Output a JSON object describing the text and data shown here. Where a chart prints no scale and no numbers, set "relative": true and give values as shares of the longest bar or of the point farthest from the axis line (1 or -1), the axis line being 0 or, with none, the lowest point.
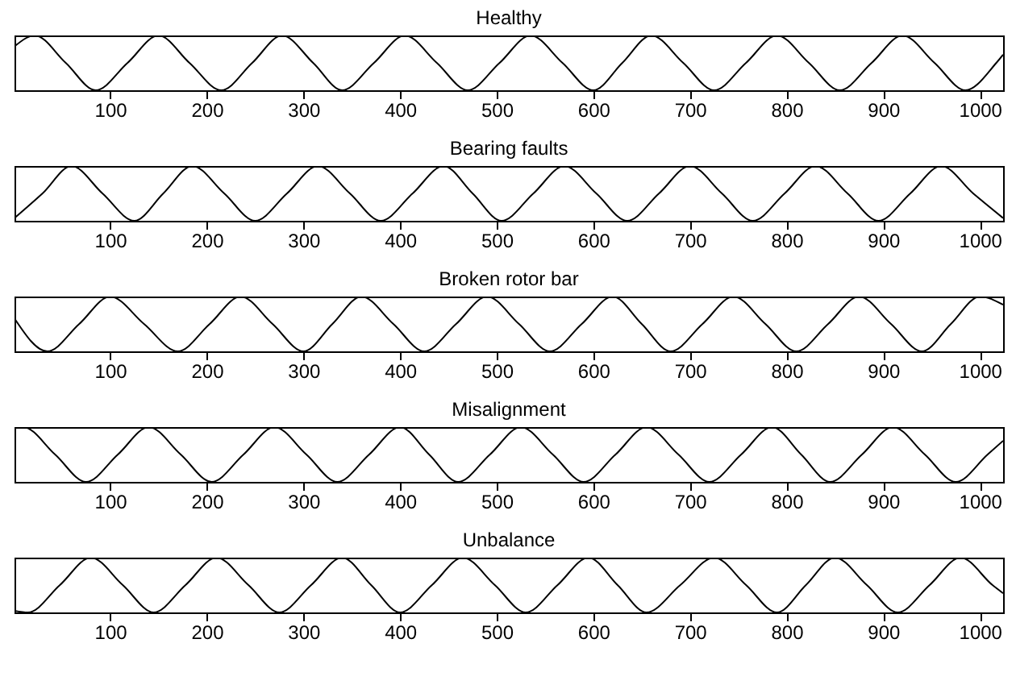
{
  "chart_data": [
    {
      "type": "line",
      "title": "Healthy",
      "relative": true,
      "tick_labels": "x",
      "xlim": [
        1,
        1024
      ],
      "xticks": [
        100,
        200,
        300,
        400,
        500,
        600,
        700,
        800,
        900,
        1000
      ],
      "x": [
        1,
        22,
        54,
        85,
        118,
        150,
        182,
        215,
        247,
        278,
        310,
        340,
        373,
        405,
        438,
        470,
        503,
        535,
        568,
        600,
        630,
        660,
        693,
        725,
        758,
        790,
        823,
        855,
        888,
        920,
        953,
        985,
        1017,
        1024
      ],
      "series": [
        {
          "color": "#000000",
          "values": [
            0.8,
            1,
            0.5,
            0,
            0.5,
            1,
            0.5,
            0,
            0.5,
            1,
            0.5,
            0,
            0.5,
            1,
            0.5,
            0,
            0.5,
            1,
            0.5,
            0,
            0.5,
            1,
            0.5,
            0,
            0.5,
            1,
            0.5,
            0,
            0.5,
            1,
            0.5,
            0,
            0.5,
            0.65
          ]
        }
      ]
    },
    {
      "type": "line",
      "title": "Bearing faults",
      "relative": true,
      "tick_labels": "x",
      "xlim": [
        1,
        1024
      ],
      "xticks": [
        100,
        200,
        300,
        400,
        500,
        600,
        700,
        800,
        900,
        1000
      ],
      "x": [
        1,
        30,
        60,
        92,
        125,
        155,
        185,
        218,
        250,
        283,
        315,
        348,
        380,
        413,
        445,
        475,
        505,
        538,
        570,
        603,
        635,
        668,
        700,
        733,
        765,
        798,
        830,
        863,
        895,
        928,
        960,
        993,
        1024
      ],
      "series": [
        {
          "color": "#000000",
          "values": [
            0.05,
            0.5,
            1,
            0.5,
            0,
            0.5,
            1,
            0.5,
            0,
            0.5,
            1,
            0.5,
            0,
            0.5,
            1,
            0.5,
            0,
            0.5,
            1,
            0.5,
            0,
            0.5,
            1,
            0.5,
            0,
            0.5,
            1,
            0.5,
            0,
            0.5,
            1,
            0.5,
            0.05
          ]
        }
      ]
    },
    {
      "type": "line",
      "title": "Broken rotor bar",
      "relative": true,
      "tick_labels": "x",
      "xlim": [
        1,
        1024
      ],
      "xticks": [
        100,
        200,
        300,
        400,
        500,
        600,
        700,
        800,
        900,
        1000
      ],
      "x": [
        1,
        35,
        68,
        100,
        135,
        170,
        203,
        235,
        268,
        300,
        330,
        360,
        393,
        425,
        458,
        490,
        523,
        555,
        588,
        620,
        650,
        680,
        713,
        745,
        778,
        810,
        843,
        875,
        908,
        940,
        970,
        1000,
        1024
      ],
      "series": [
        {
          "color": "#000000",
          "values": [
            0.6,
            0,
            0.5,
            1,
            0.5,
            0,
            0.5,
            1,
            0.5,
            0,
            0.5,
            1,
            0.5,
            0,
            0.5,
            1,
            0.5,
            0,
            0.5,
            1,
            0.5,
            0,
            0.5,
            1,
            0.5,
            0,
            0.5,
            1,
            0.5,
            0,
            0.5,
            1,
            0.85
          ]
        }
      ]
    },
    {
      "type": "line",
      "title": "Misalignment",
      "relative": true,
      "tick_labels": "x",
      "xlim": [
        1,
        1024
      ],
      "xticks": [
        100,
        200,
        300,
        400,
        500,
        600,
        700,
        800,
        900,
        1000
      ],
      "x": [
        1,
        10,
        43,
        75,
        108,
        140,
        173,
        205,
        238,
        270,
        303,
        335,
        368,
        400,
        430,
        460,
        493,
        525,
        558,
        590,
        623,
        655,
        688,
        720,
        753,
        785,
        815,
        845,
        878,
        910,
        943,
        975,
        1008,
        1024
      ],
      "series": [
        {
          "color": "#000000",
          "values": [
            0.98,
            1,
            0.5,
            0,
            0.5,
            1,
            0.5,
            0,
            0.5,
            1,
            0.5,
            0,
            0.5,
            1,
            0.5,
            0,
            0.5,
            1,
            0.5,
            0,
            0.5,
            1,
            0.5,
            0,
            0.5,
            1,
            0.5,
            0,
            0.5,
            1,
            0.5,
            0,
            0.5,
            0.75
          ]
        }
      ]
    },
    {
      "type": "line",
      "title": "Unbalance",
      "relative": true,
      "tick_labels": "x",
      "xlim": [
        1,
        1024
      ],
      "xticks": [
        100,
        200,
        300,
        400,
        500,
        600,
        700,
        800,
        900,
        1000
      ],
      "x": [
        1,
        15,
        48,
        80,
        113,
        145,
        178,
        210,
        243,
        275,
        308,
        340,
        370,
        400,
        433,
        465,
        498,
        530,
        563,
        595,
        625,
        655,
        690,
        725,
        758,
        790,
        820,
        850,
        883,
        915,
        948,
        980,
        1013,
        1024
      ],
      "series": [
        {
          "color": "#000000",
          "values": [
            0.03,
            0,
            0.5,
            1,
            0.5,
            0,
            0.5,
            1,
            0.5,
            0,
            0.5,
            1,
            0.5,
            0,
            0.5,
            1,
            0.5,
            0,
            0.5,
            1,
            0.5,
            0,
            0.5,
            1,
            0.5,
            0,
            0.5,
            1,
            0.5,
            0,
            0.5,
            1,
            0.5,
            0.35
          ]
        }
      ]
    }
  ]
}
